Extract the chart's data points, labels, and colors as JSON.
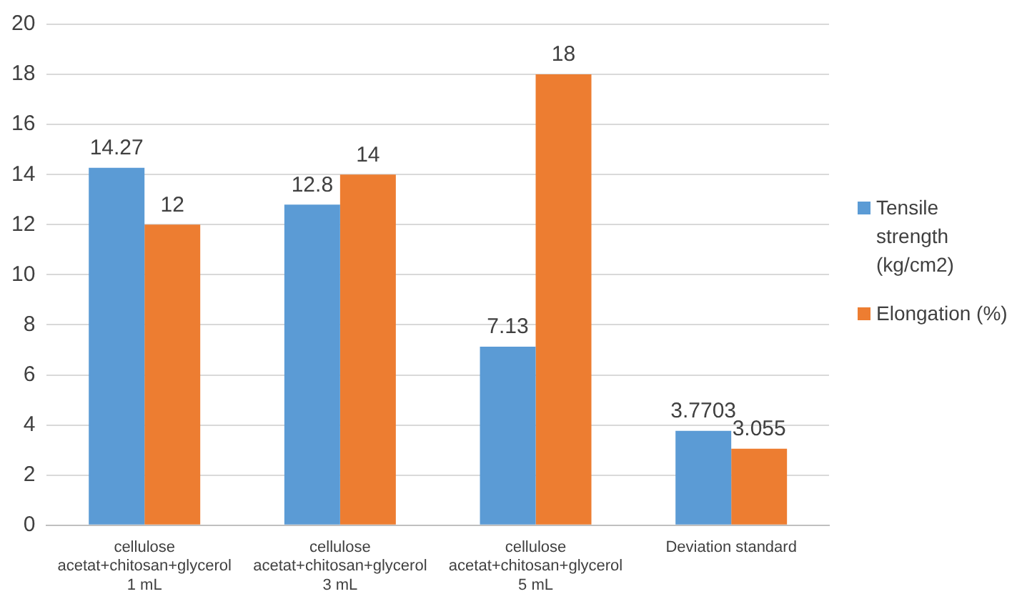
{
  "chart_data": {
    "type": "bar",
    "categories": [
      "cellulose acetat+chitosan+glycerol 1 mL",
      "cellulose acetat+chitosan+glycerol 3 mL",
      "cellulose acetat+chitosan+glycerol 5 mL",
      "Deviation standard"
    ],
    "series": [
      {
        "name": "Tensile strength (kg/cm2)",
        "color": "#5b9bd5",
        "values": [
          14.27,
          12.8,
          7.13,
          3.7703
        ]
      },
      {
        "name": "Elongation (%)",
        "color": "#ed7d31",
        "values": [
          12,
          14,
          18,
          3.055
        ]
      }
    ],
    "ylim": [
      0,
      20
    ],
    "yticks": [
      0,
      2,
      4,
      6,
      8,
      10,
      12,
      14,
      16,
      18,
      20
    ],
    "grid": "y",
    "legend": "right",
    "data_labels": true
  }
}
